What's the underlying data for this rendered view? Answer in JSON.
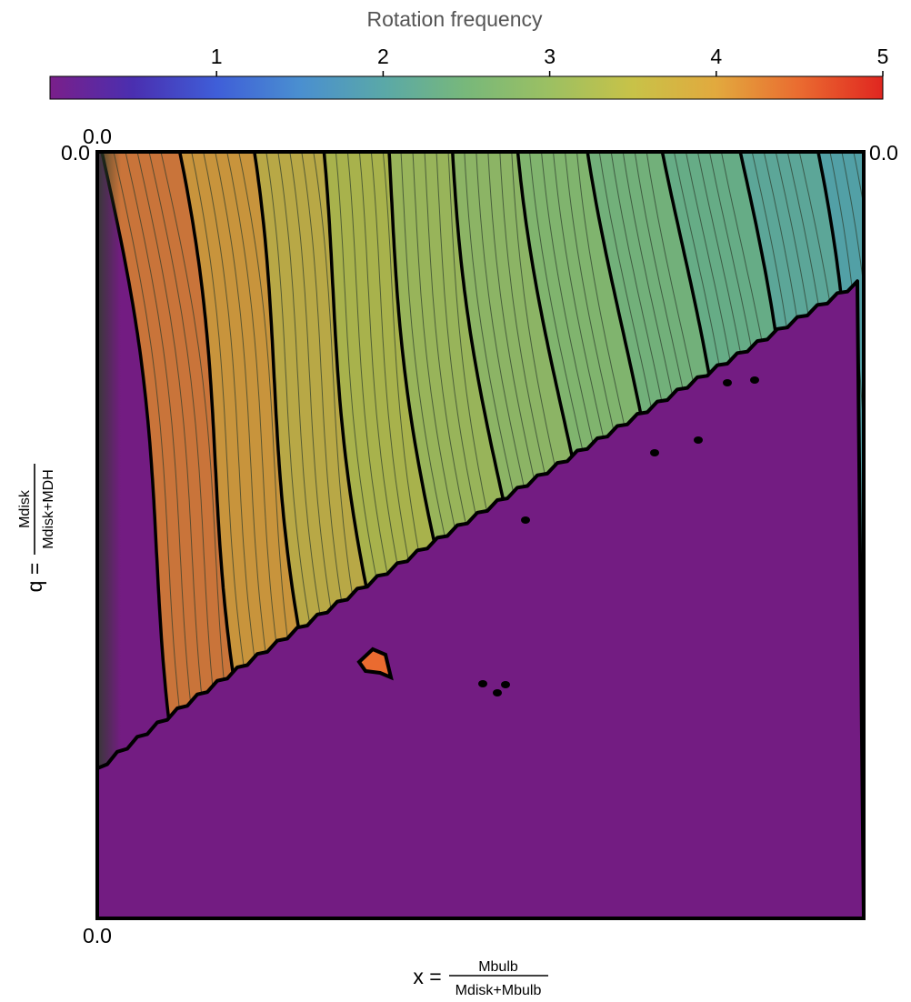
{
  "chart_data": {
    "type": "heatmap",
    "title": "",
    "colorbar": {
      "label": "Rotation frequency",
      "ticks": [
        "1",
        "2",
        "3",
        "4",
        "5"
      ],
      "tick_values": [
        1,
        2,
        3,
        4,
        5
      ],
      "range": [
        0,
        5
      ],
      "colors": [
        "#7a1f8a",
        "#4a2fb0",
        "#3f5ed8",
        "#4a8fd0",
        "#5aa8a8",
        "#78b87a",
        "#9cc062",
        "#c8c248",
        "#e2a93e",
        "#ea6b30",
        "#e02620"
      ]
    },
    "xlabel": {
      "prefix": "x =",
      "numerator": "Mbulb",
      "denominator": "Mdisk+Mbulb"
    },
    "ylabel": {
      "prefix": "q =",
      "numerator": "Mdisk",
      "denominator": "Mdisk+MDH"
    },
    "corner_labels": {
      "top_left_above": "0.0",
      "top_left": "0.0",
      "top_right": "0.0",
      "bottom_left": "0.0"
    },
    "background_color": "#731c82",
    "bands": [
      {
        "value": 3.6,
        "color": "#c9743a"
      },
      {
        "value": 3.4,
        "color": "#c8943c"
      },
      {
        "value": 3.2,
        "color": "#b8a846"
      },
      {
        "value": 3.0,
        "color": "#a8b24c"
      },
      {
        "value": 2.8,
        "color": "#98b45a"
      },
      {
        "value": 2.6,
        "color": "#8cb465"
      },
      {
        "value": 2.4,
        "color": "#80b46e"
      },
      {
        "value": 2.2,
        "color": "#72b07a"
      },
      {
        "value": 2.0,
        "color": "#66ac86"
      },
      {
        "value": 1.9,
        "color": "#5ca698"
      },
      {
        "value": 1.8,
        "color": "#52a0a6"
      }
    ],
    "hotspot_value": 4.5
  }
}
